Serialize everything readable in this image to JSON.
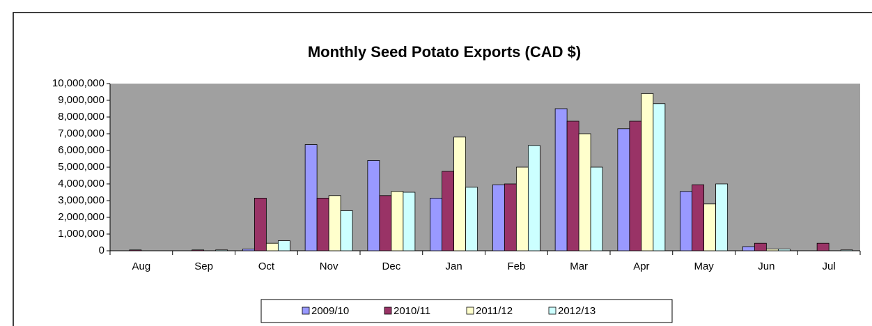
{
  "chart_data": {
    "type": "bar",
    "title": "Monthly Seed Potato Exports (CAD $)",
    "categories": [
      "Aug",
      "Sep",
      "Oct",
      "Nov",
      "Dec",
      "Jan",
      "Feb",
      "Mar",
      "Apr",
      "May",
      "Jun",
      "Jul"
    ],
    "series": [
      {
        "name": "2009/10",
        "color": "#9999ff",
        "values": [
          0,
          0,
          100000,
          6350000,
          5400000,
          3150000,
          3950000,
          8500000,
          7300000,
          3550000,
          250000,
          0
        ]
      },
      {
        "name": "2010/11",
        "color": "#993366",
        "values": [
          50000,
          50000,
          3150000,
          3150000,
          3300000,
          4750000,
          4000000,
          7750000,
          7750000,
          3950000,
          450000,
          450000
        ]
      },
      {
        "name": "2011/12",
        "color": "#ffffcc",
        "values": [
          0,
          0,
          450000,
          3300000,
          3550000,
          6800000,
          5000000,
          7000000,
          9400000,
          2800000,
          100000,
          0
        ]
      },
      {
        "name": "2012/13",
        "color": "#ccffff",
        "values": [
          0,
          50000,
          600000,
          2400000,
          3500000,
          3800000,
          6300000,
          5000000,
          8800000,
          4000000,
          100000,
          50000
        ]
      }
    ],
    "ylim": [
      0,
      10000000
    ],
    "yticks": [
      0,
      {
        "value": 1000000,
        "label": "1,000,000"
      },
      {
        "value": 2000000,
        "label": "2,000,000"
      },
      {
        "value": 3000000,
        "label": "3,000,000"
      },
      {
        "value": 4000000,
        "label": "4,000,000"
      },
      {
        "value": 5000000,
        "label": "5,000,000"
      },
      {
        "value": 6000000,
        "label": "6,000,000"
      },
      {
        "value": 7000000,
        "label": "7,000,000"
      },
      {
        "value": 8000000,
        "label": "8,000,000"
      },
      {
        "value": 9000000,
        "label": "9,000,000"
      },
      {
        "value": 10000000,
        "label": "10,000,000"
      }
    ],
    "plot_background": "#a0a0a0",
    "legend": "bottom"
  }
}
